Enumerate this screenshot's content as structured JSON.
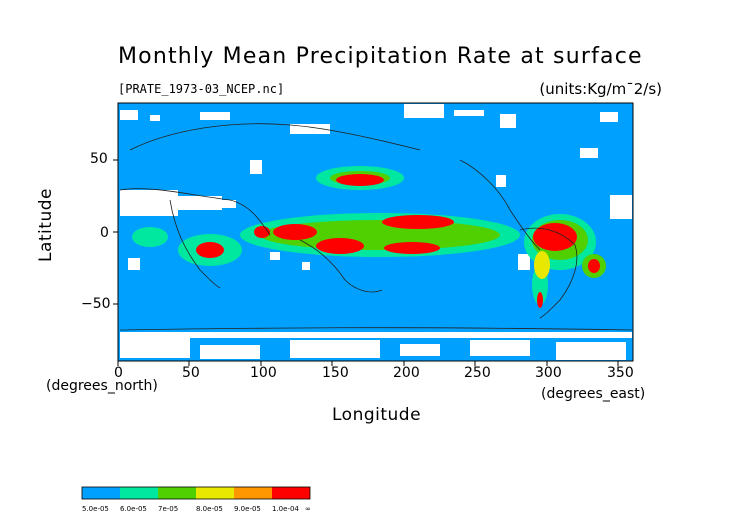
{
  "title": "Monthly Mean Precipitation Rate at surface",
  "source_file": "[PRATE_1973-03_NCEP.nc]",
  "units": "(units:Kg/m^-2/s)",
  "units_display": "(units:Kg/m¯2/s)",
  "xaxis": {
    "label": "Longitude",
    "unit_left": "(degrees_north)",
    "unit_right": "(degrees_east)",
    "ticks": [
      "0",
      "50",
      "100",
      "150",
      "200",
      "250",
      "300",
      "350"
    ]
  },
  "yaxis": {
    "label": "Latitude",
    "ticks": [
      "50",
      "0",
      "−50"
    ]
  },
  "colorbar": {
    "labels": [
      "5.0e-05",
      "6.0e-05",
      "7e-05",
      "8.0e-05",
      "9.0e-05",
      "1.0e-04",
      "∞"
    ],
    "colors": [
      "#00a0ff",
      "#00e8a0",
      "#50d000",
      "#e8e800",
      "#ff9800",
      "#ff0000"
    ]
  },
  "colors": {
    "ocean": "#00a0ff",
    "missing": "#ffffff",
    "heavy": "#ff0000"
  }
}
